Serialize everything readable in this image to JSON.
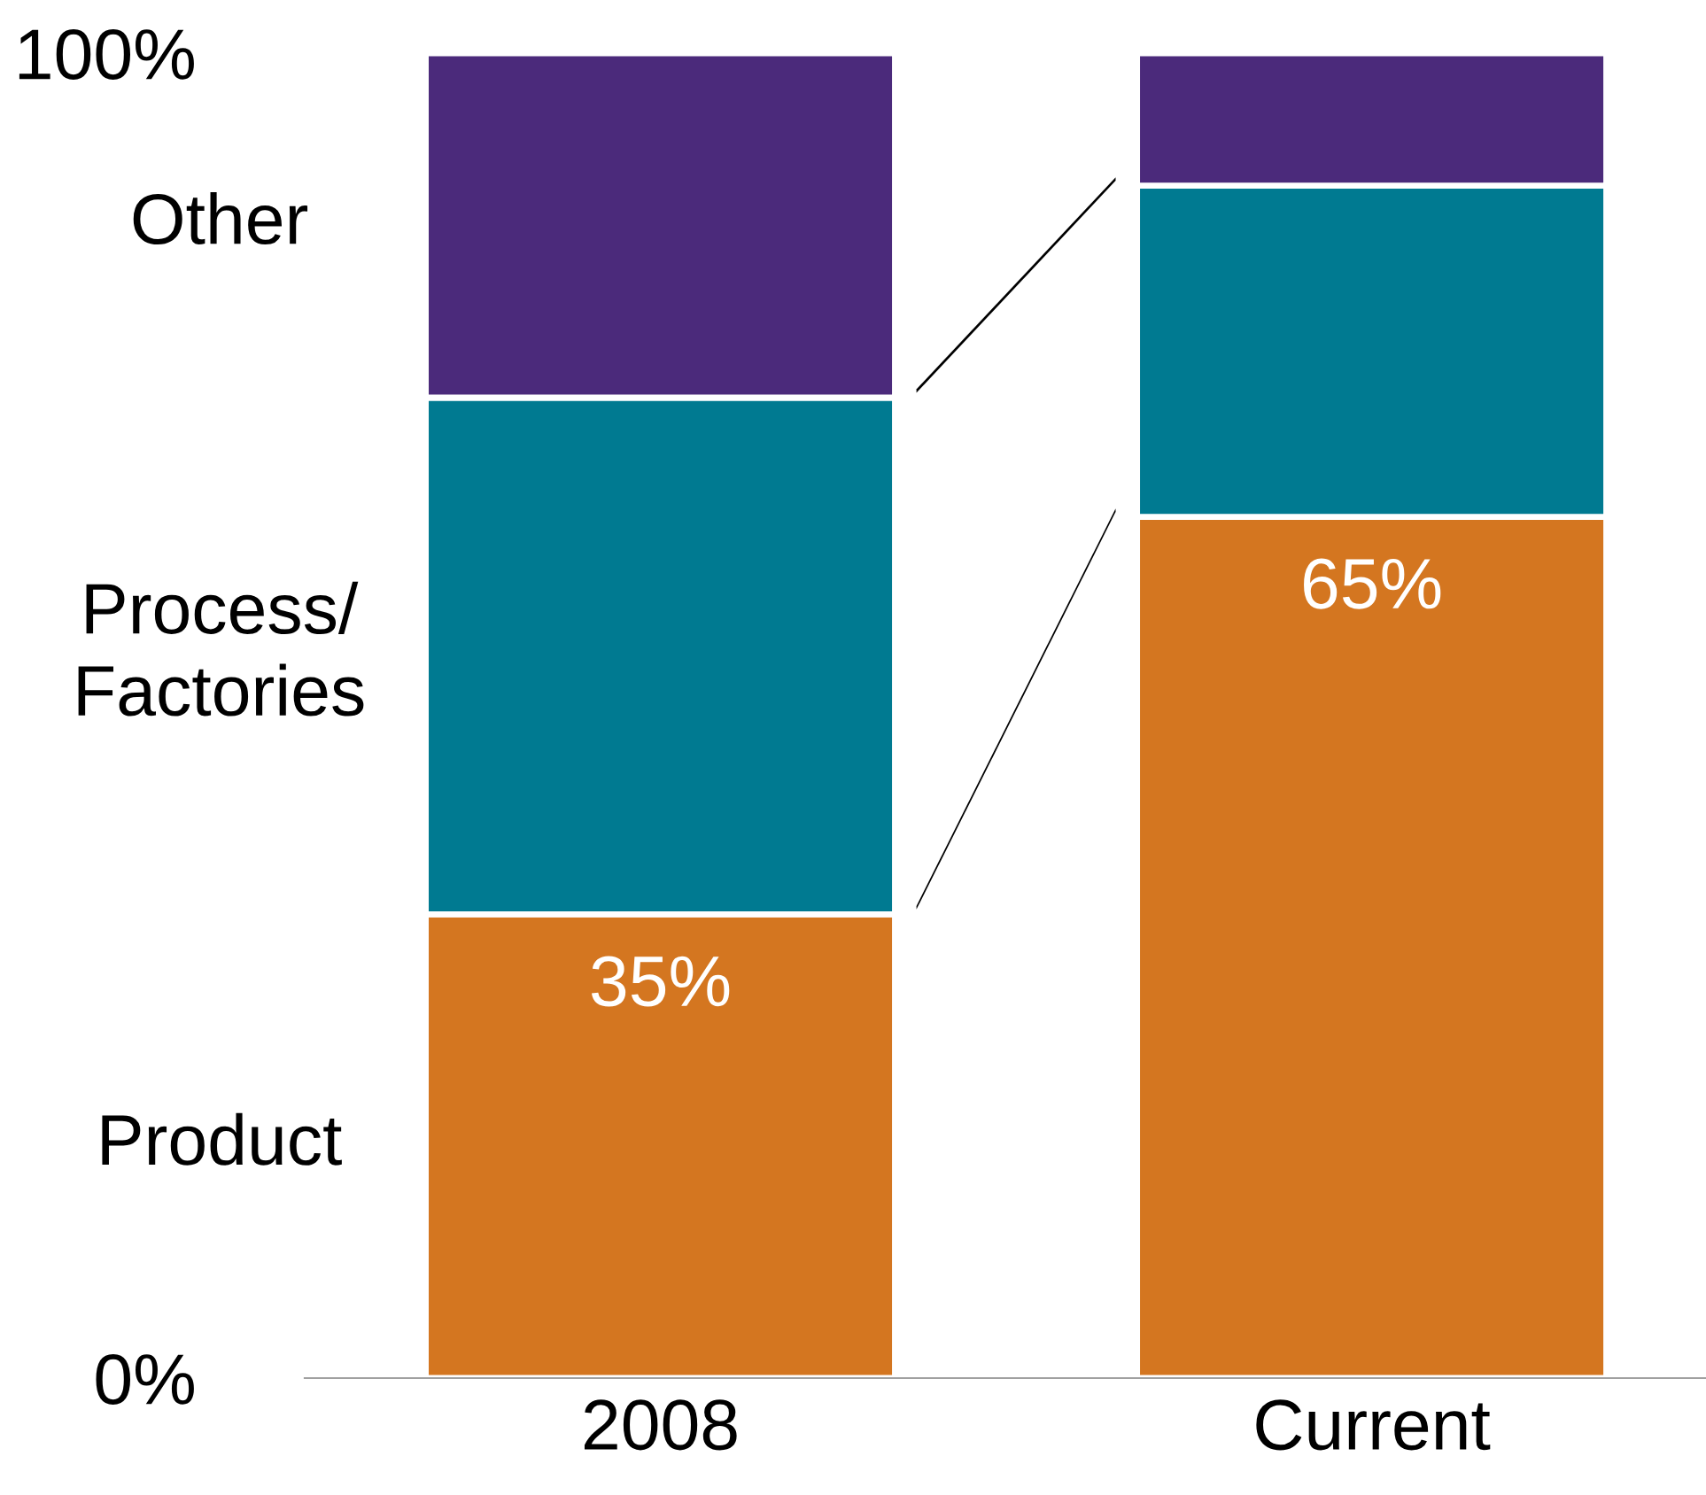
{
  "chart_data": {
    "type": "bar",
    "stacked": true,
    "categories": [
      "2008",
      "Current"
    ],
    "series": [
      {
        "name": "Product",
        "color": "#d47620",
        "values": [
          35,
          65
        ],
        "value_labels": [
          "35%",
          "65%"
        ]
      },
      {
        "name": "Process/\nFactories",
        "color": "#007a91",
        "values": [
          39,
          25
        ]
      },
      {
        "name": "Other",
        "color": "#4b2a7b",
        "values": [
          26,
          10
        ]
      }
    ],
    "ylim": [
      0,
      100
    ],
    "yticks": [
      {
        "value": 0,
        "label": "0%"
      },
      {
        "value": 100,
        "label": "100%"
      }
    ],
    "grid": false,
    "legend": false
  }
}
